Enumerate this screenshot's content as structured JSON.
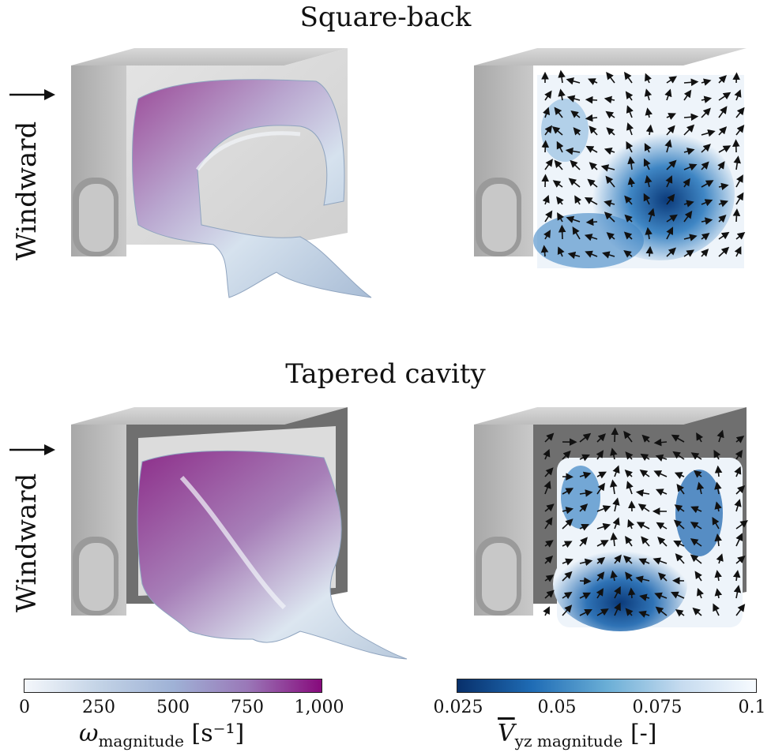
{
  "titles": {
    "top": "Square-back",
    "bottom": "Tapered cavity"
  },
  "side_label": "Windward",
  "colorbar_left": {
    "ticks": [
      "0",
      "250",
      "500",
      "750",
      "1,000"
    ],
    "label_main": "ω",
    "label_sub": "magnitude",
    "label_unit": "[s⁻¹]",
    "colors": [
      "#f4f7fb",
      "#c3d3e6",
      "#9fb2d6",
      "#9a78b8",
      "#870a7c"
    ]
  },
  "colorbar_right": {
    "ticks": [
      "0.025",
      "0.05",
      "0.075",
      "0.1"
    ],
    "label_main": "V",
    "label_sub": "yz magnitude",
    "label_unit": "[-]",
    "colors": [
      "#08306b",
      "#1f6cb5",
      "#6aaed6",
      "#c6dbef",
      "#f7fbff"
    ]
  }
}
